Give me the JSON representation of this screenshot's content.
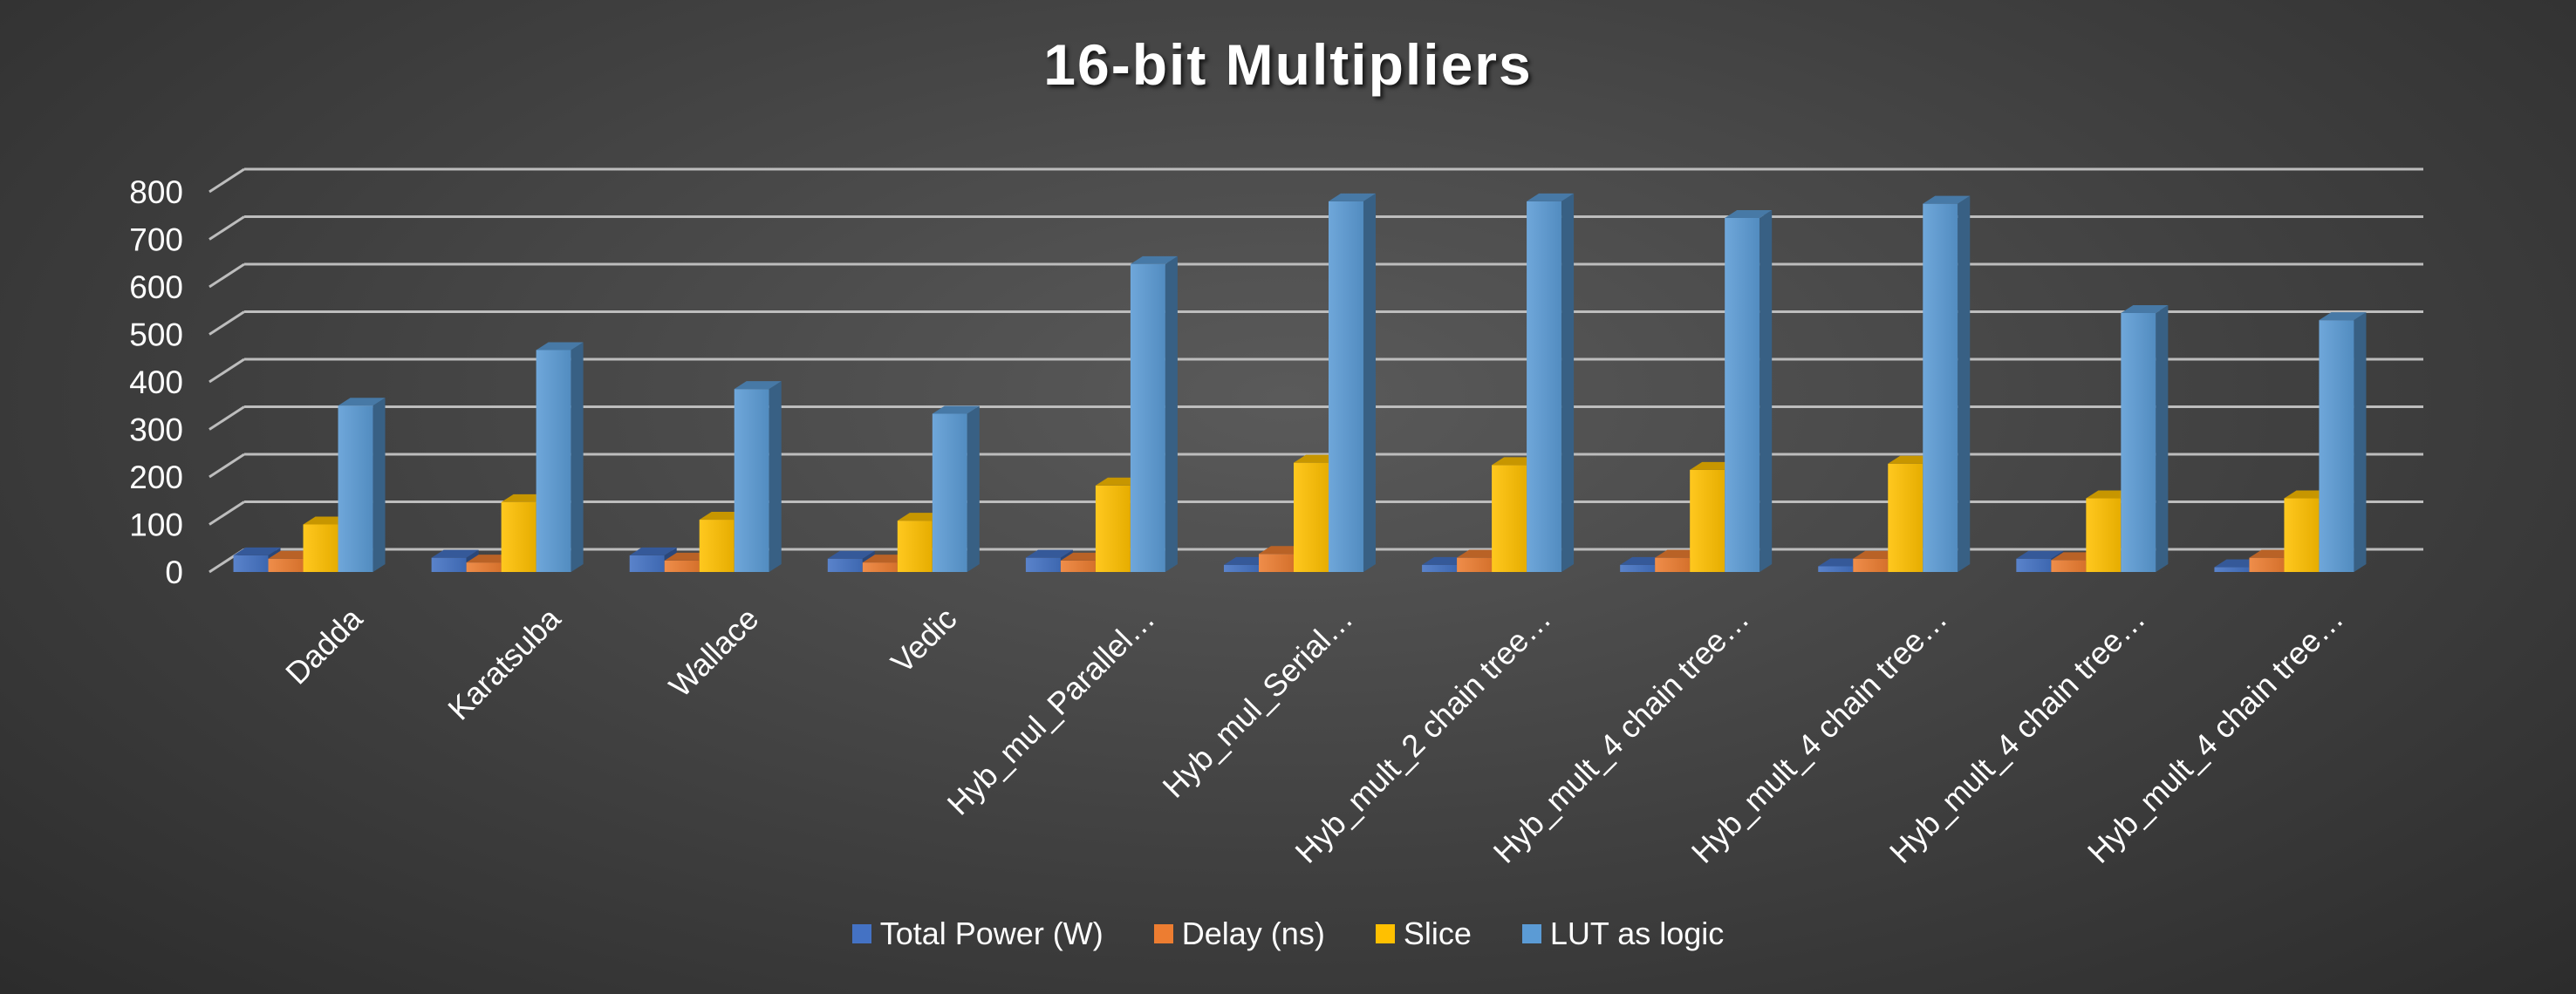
{
  "chart_data": {
    "type": "bar",
    "title": "16-bit Multipliers",
    "xlabel": "",
    "ylabel": "",
    "ylim": [
      0,
      800
    ],
    "yticks": [
      0,
      100,
      200,
      300,
      400,
      500,
      600,
      700,
      800
    ],
    "grid": true,
    "legend": "bottom",
    "style": "3d-clustered-column",
    "categories": [
      "Dadda",
      "Karatsuba",
      "Wallace",
      "Vedic",
      "Hyb_mul_Parallel…",
      "Hyb_mul_Serial…",
      "Hyb_mult_2 chain tree…",
      "Hyb_mult_4 chain tree…",
      "Hyb_mult_4 chain tree…",
      "Hyb_mult_4 chain tree…",
      "Hyb_mult_4 chain tree…"
    ],
    "series": [
      {
        "name": "Total Power (W)",
        "color": "#4472C4",
        "values": [
          35,
          30,
          35,
          28,
          30,
          15,
          15,
          15,
          12,
          28,
          10
        ]
      },
      {
        "name": "Delay (ns)",
        "color": "#ED7D31",
        "values": [
          28,
          20,
          24,
          20,
          24,
          38,
          30,
          30,
          28,
          25,
          30
        ]
      },
      {
        "name": "Slice",
        "color": "#FFC000",
        "values": [
          100,
          147,
          110,
          108,
          182,
          230,
          225,
          215,
          228,
          155,
          155
        ]
      },
      {
        "name": "LUT as logic",
        "color": "#5B9BD5",
        "values": [
          350,
          467,
          385,
          333,
          648,
          780,
          780,
          745,
          775,
          545,
          530
        ]
      }
    ]
  }
}
